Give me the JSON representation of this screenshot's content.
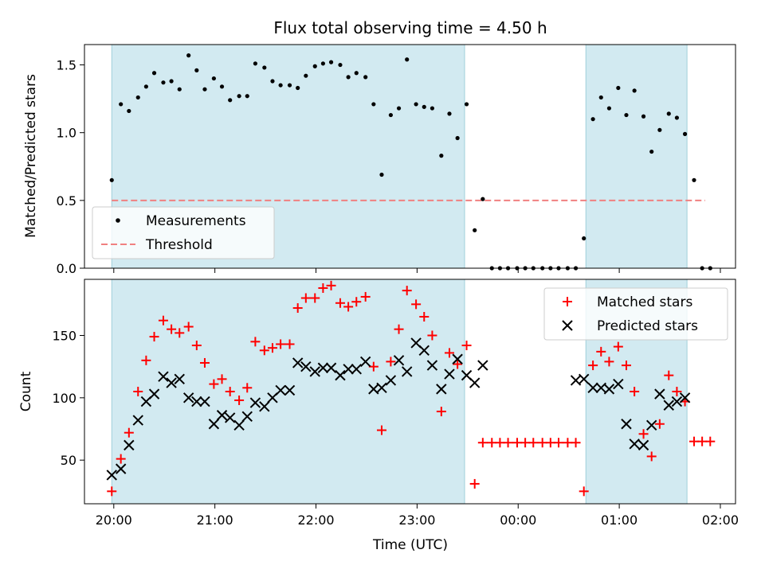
{
  "chart_data": [
    {
      "type": "scatter",
      "title": "Flux total observing time = 4.50 h",
      "xlabel": "",
      "ylabel": "Matched/Predicted stars",
      "xlim": [
        -0.29,
        6.15
      ],
      "ylim": [
        0,
        1.65
      ],
      "yticks": [
        0.0,
        0.5,
        1.0,
        1.5
      ],
      "ytick_labels": [
        "0.0",
        "0.5",
        "1.0",
        "1.5"
      ],
      "xticks": [
        0,
        1,
        2,
        3,
        4,
        5,
        6
      ],
      "show_xtick_labels": false,
      "shaded_intervals": [
        [
          -0.02,
          3.47
        ],
        [
          4.67,
          5.67
        ]
      ],
      "shade_color": "#add8e6",
      "legend": {
        "placement": "lower-left",
        "entries": [
          "Measurements",
          "Threshold"
        ]
      },
      "threshold": {
        "name": "Threshold",
        "y": 0.5,
        "x_range": [
          -0.02,
          5.85
        ],
        "color": "#f08080"
      },
      "series": [
        {
          "name": "Measurements",
          "color": "#000000",
          "x": [
            -0.02,
            0.07,
            0.15,
            0.24,
            0.32,
            0.4,
            0.49,
            0.57,
            0.65,
            0.74,
            0.82,
            0.9,
            0.99,
            1.07,
            1.15,
            1.24,
            1.32,
            1.4,
            1.49,
            1.57,
            1.65,
            1.74,
            1.82,
            1.9,
            1.99,
            2.07,
            2.15,
            2.24,
            2.32,
            2.4,
            2.49,
            2.57,
            2.65,
            2.74,
            2.82,
            2.9,
            2.99,
            3.07,
            3.15,
            3.24,
            3.32,
            3.4,
            3.49,
            3.57,
            3.65,
            3.74,
            3.82,
            3.9,
            3.99,
            4.07,
            4.15,
            4.24,
            4.32,
            4.4,
            4.49,
            4.57,
            4.65,
            4.74,
            4.82,
            4.9,
            4.99,
            5.07,
            5.15,
            5.24,
            5.32,
            5.4,
            5.49,
            5.57,
            5.65,
            5.74,
            5.82,
            5.9
          ],
          "y": [
            0.65,
            1.21,
            1.16,
            1.26,
            1.34,
            1.44,
            1.37,
            1.38,
            1.32,
            1.57,
            1.46,
            1.32,
            1.4,
            1.34,
            1.24,
            1.27,
            1.27,
            1.51,
            1.48,
            1.38,
            1.35,
            1.35,
            1.33,
            1.42,
            1.49,
            1.51,
            1.52,
            1.5,
            1.41,
            1.44,
            1.41,
            1.21,
            0.69,
            1.13,
            1.18,
            1.54,
            1.21,
            1.19,
            1.18,
            0.83,
            1.14,
            0.96,
            1.21,
            0.28,
            0.51,
            0.0,
            0.0,
            0.0,
            0.0,
            0.0,
            0.0,
            0.0,
            0.0,
            0.0,
            0.0,
            0.0,
            0.22,
            1.1,
            1.26,
            1.18,
            1.33,
            1.13,
            1.31,
            1.12,
            0.86,
            1.02,
            1.14,
            1.11,
            0.99,
            0.65,
            0.0,
            0.0
          ]
        }
      ]
    },
    {
      "type": "scatter",
      "title": "",
      "xlabel": "Time (UTC)",
      "ylabel": "Count",
      "xlim": [
        -0.29,
        6.15
      ],
      "ylim": [
        15,
        195
      ],
      "yticks": [
        50,
        100,
        150
      ],
      "ytick_labels": [
        "50",
        "100",
        "150"
      ],
      "xticks": [
        0,
        1,
        2,
        3,
        4,
        5,
        6
      ],
      "xtick_labels": [
        "20:00",
        "21:00",
        "22:00",
        "23:00",
        "00:00",
        "01:00",
        "02:00"
      ],
      "shaded_intervals": [
        [
          -0.02,
          3.47
        ],
        [
          4.67,
          5.67
        ]
      ],
      "shade_color": "#add8e6",
      "legend": {
        "placement": "upper-right",
        "entries": [
          "Matched stars",
          "Predicted stars"
        ]
      },
      "series": [
        {
          "name": "Matched stars",
          "marker": "plus",
          "color": "#ff0000",
          "x": [
            -0.02,
            0.07,
            0.15,
            0.24,
            0.32,
            0.4,
            0.49,
            0.57,
            0.65,
            0.74,
            0.82,
            0.9,
            0.99,
            1.07,
            1.15,
            1.24,
            1.32,
            1.4,
            1.49,
            1.57,
            1.65,
            1.74,
            1.82,
            1.9,
            1.99,
            2.07,
            2.15,
            2.24,
            2.32,
            2.4,
            2.49,
            2.57,
            2.65,
            2.74,
            2.82,
            2.9,
            2.99,
            3.07,
            3.15,
            3.24,
            3.32,
            3.4,
            3.49,
            3.57,
            3.65,
            3.74,
            3.82,
            3.9,
            3.99,
            4.07,
            4.15,
            4.24,
            4.32,
            4.4,
            4.49,
            4.57,
            4.65,
            4.74,
            4.82,
            4.9,
            4.99,
            5.07,
            5.15,
            5.24,
            5.32,
            5.4,
            5.49,
            5.57,
            5.65,
            5.74,
            5.82,
            5.9
          ],
          "y": [
            25,
            51,
            72,
            105,
            130,
            149,
            162,
            155,
            152,
            157,
            142,
            128,
            111,
            115,
            105,
            98,
            108,
            145,
            138,
            140,
            143,
            143,
            172,
            180,
            180,
            188,
            190,
            176,
            173,
            177,
            181,
            125,
            74,
            129,
            155,
            186,
            175,
            165,
            150,
            89,
            136,
            127,
            142,
            31,
            64,
            64,
            64,
            64,
            64,
            64,
            64,
            64,
            64,
            64,
            64,
            64,
            25,
            126,
            137,
            129,
            141,
            126,
            105,
            71,
            53,
            79,
            118,
            105,
            97,
            65,
            65,
            65
          ]
        },
        {
          "name": "Predicted stars",
          "marker": "x",
          "color": "#000000",
          "x": [
            -0.02,
            0.07,
            0.15,
            0.24,
            0.32,
            0.4,
            0.49,
            0.57,
            0.65,
            0.74,
            0.82,
            0.9,
            0.99,
            1.07,
            1.15,
            1.24,
            1.32,
            1.4,
            1.49,
            1.57,
            1.65,
            1.74,
            1.82,
            1.9,
            1.99,
            2.07,
            2.15,
            2.24,
            2.32,
            2.4,
            2.49,
            2.57,
            2.65,
            2.74,
            2.82,
            2.9,
            2.99,
            3.07,
            3.15,
            3.24,
            3.32,
            3.4,
            3.49,
            3.57,
            3.65,
            4.57,
            4.65,
            4.74,
            4.82,
            4.9,
            4.99,
            5.07,
            5.15,
            5.24,
            5.32,
            5.4,
            5.49,
            5.57,
            5.65
          ],
          "y": [
            38,
            43,
            62,
            82,
            97,
            103,
            117,
            112,
            115,
            100,
            97,
            97,
            79,
            86,
            84,
            78,
            85,
            96,
            93,
            100,
            106,
            106,
            128,
            125,
            121,
            124,
            124,
            118,
            123,
            123,
            129,
            107,
            108,
            114,
            130,
            121,
            144,
            138,
            126,
            107,
            119,
            131,
            118,
            112,
            126,
            114,
            115,
            108,
            108,
            107,
            111,
            79,
            63,
            62,
            78,
            103,
            94,
            97,
            100
          ]
        }
      ]
    }
  ]
}
